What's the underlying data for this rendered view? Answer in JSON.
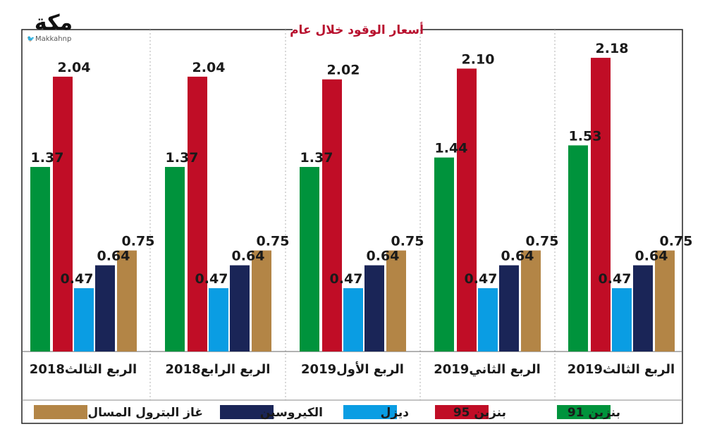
{
  "brand": {
    "logo_text": "مكة",
    "handle": "Makkahnp",
    "bird_glyph": "🐦",
    "logo_color": "#111111",
    "handle_color": "#1da1f2"
  },
  "chart_data": {
    "type": "bar",
    "title": "أسعار الوقود خلال عام",
    "categories": [
      "الربع الثالث2019",
      "الربع الثاني2019",
      "الربع الأول2019",
      "الربع الرابع2018",
      "الربع الثالث2018"
    ],
    "series": [
      {
        "name": "بنزين 91",
        "color": "#00933c",
        "values": [
          1.53,
          1.44,
          1.37,
          1.37,
          1.37
        ]
      },
      {
        "name": "بنزين 95",
        "color": "#c00d26",
        "values": [
          2.18,
          2.1,
          2.02,
          2.04,
          2.04
        ]
      },
      {
        "name": "ديزل",
        "color": "#0a9de3",
        "values": [
          0.47,
          0.47,
          0.47,
          0.47,
          0.47
        ]
      },
      {
        "name": "الكيروسين",
        "color": "#1a2557",
        "values": [
          0.64,
          0.64,
          0.64,
          0.64,
          0.64
        ]
      },
      {
        "name": "غاز البترول المسال",
        "color": "#b38546",
        "values": [
          0.75,
          0.75,
          0.75,
          0.75,
          0.75
        ]
      }
    ],
    "value_labels": [
      [
        "1.53",
        "2.18",
        "0.47",
        "0.64",
        "0.75"
      ],
      [
        "1.44",
        "2.10",
        "0.47",
        "0.64",
        "0.75"
      ],
      [
        "1.37",
        "2.02",
        "0.47",
        "0.64",
        "0.75"
      ],
      [
        "1.37",
        "2.04",
        "0.47",
        "0.64",
        "0.75"
      ],
      [
        "1.37",
        "2.04",
        "0.47",
        "0.64",
        "0.75"
      ]
    ],
    "ylim": [
      0,
      2.4
    ],
    "xlabel": "",
    "ylabel": "",
    "legend_position": "bottom",
    "grid": false,
    "category_order": "right-to-left"
  }
}
